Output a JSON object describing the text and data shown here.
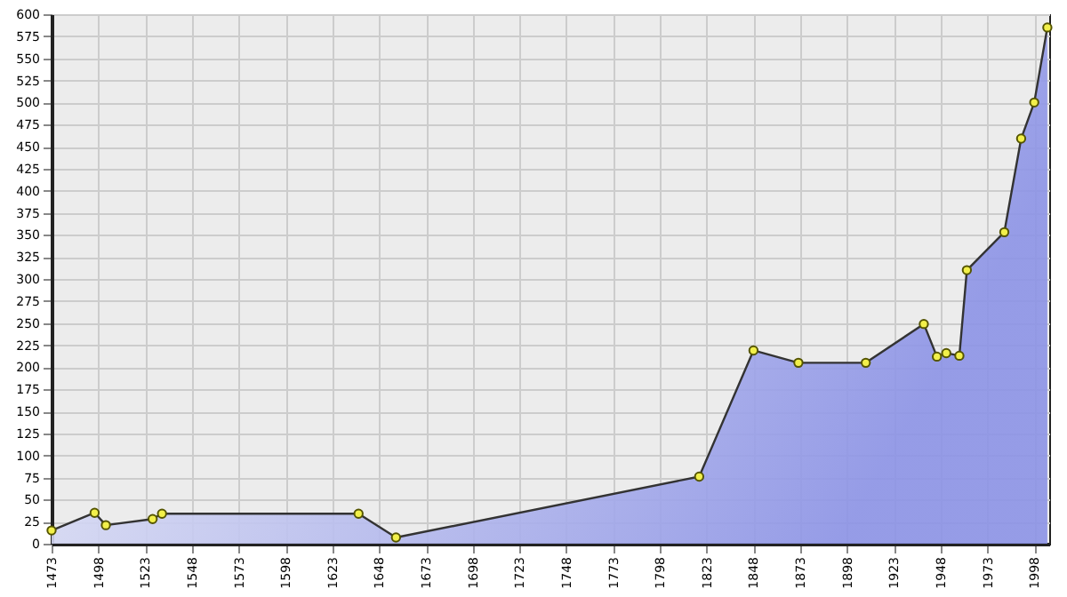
{
  "chart_data": {
    "type": "area",
    "x": [
      1473,
      1496,
      1502,
      1527,
      1532,
      1637,
      1657,
      1819,
      1848,
      1872,
      1908,
      1939,
      1946,
      1951,
      1958,
      1962,
      1982,
      1991,
      1998,
      2005
    ],
    "series": [
      {
        "color": "#8c93e6",
        "values": [
          15,
          35,
          21,
          28,
          34,
          34,
          7,
          76,
          219,
          205,
          205,
          249,
          212,
          216,
          213,
          310,
          353,
          459,
          500,
          585
        ]
      }
    ],
    "xlim": [
      1473,
      2006
    ],
    "xticks": [
      1473,
      1498,
      1523,
      1548,
      1573,
      1598,
      1623,
      1648,
      1673,
      1698,
      1723,
      1748,
      1773,
      1798,
      1823,
      1848,
      1873,
      1898,
      1923,
      1948,
      1973,
      1998
    ],
    "ylim": [
      0,
      600
    ],
    "yticks": [
      0,
      25,
      50,
      75,
      100,
      125,
      150,
      175,
      200,
      225,
      250,
      275,
      300,
      325,
      350,
      375,
      400,
      425,
      450,
      475,
      500,
      525,
      550,
      575,
      600
    ],
    "grid": true,
    "marker": "circle"
  }
}
